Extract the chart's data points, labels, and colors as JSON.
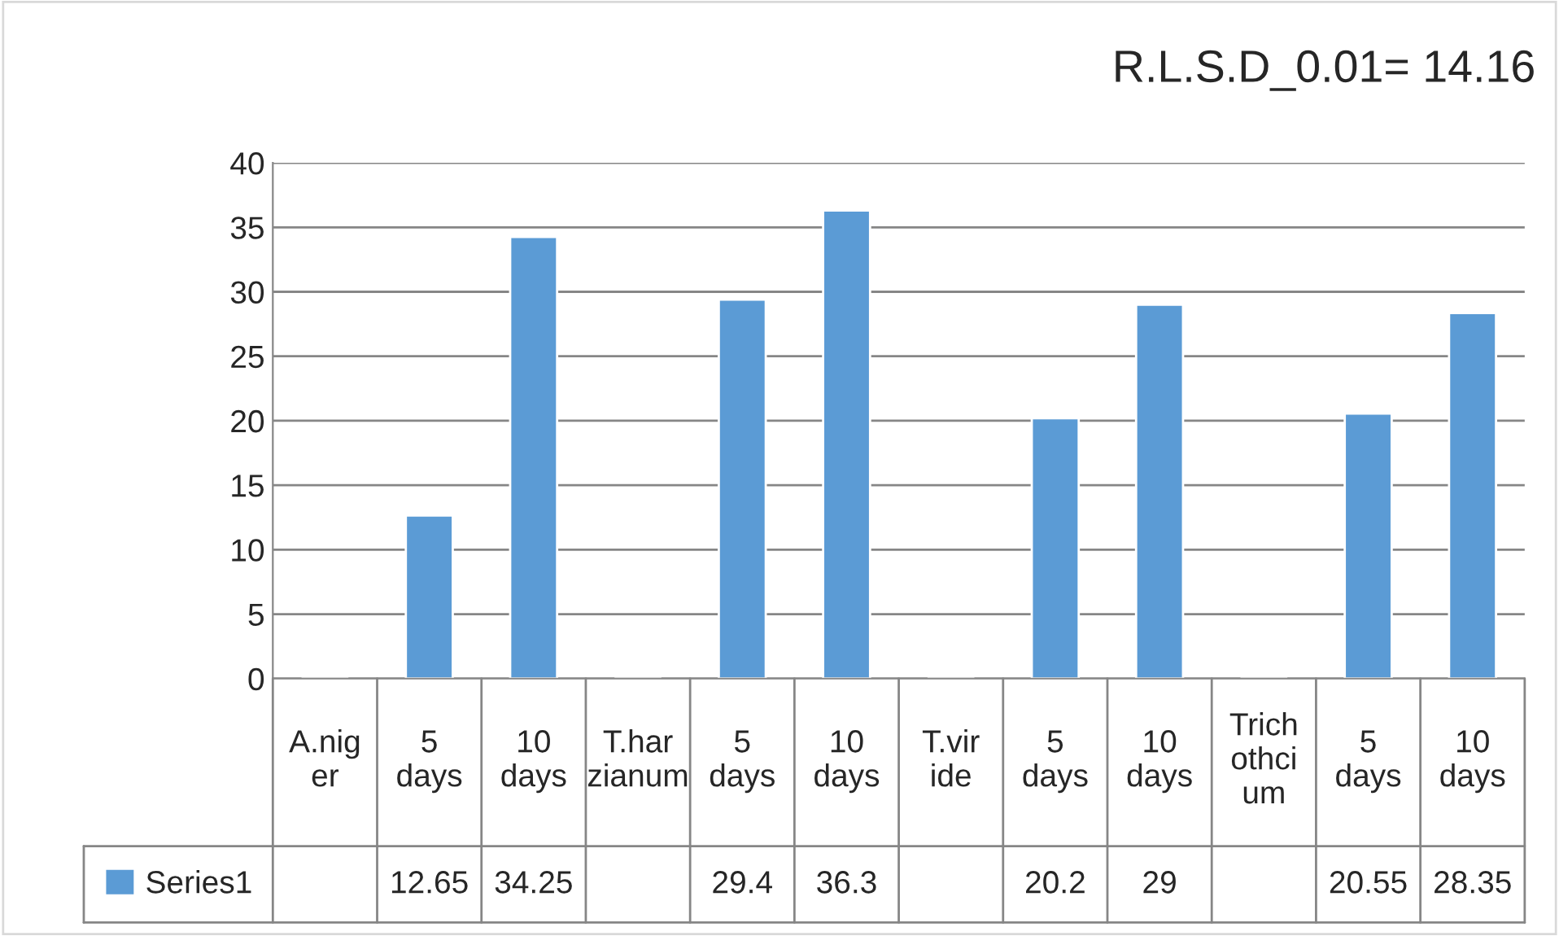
{
  "chart_data": {
    "type": "bar",
    "categories": [
      "A.niger",
      "5 days",
      "10 days",
      "T.harzianum",
      "5 days",
      "10 days",
      "T.viride",
      "5 days",
      "10 days",
      "Trichothcium",
      "5 days",
      "10 days"
    ],
    "series": [
      {
        "name": "Series1",
        "color": "#5b9bd5",
        "values": [
          null,
          12.65,
          34.25,
          null,
          29.4,
          36.3,
          null,
          20.2,
          29,
          null,
          20.55,
          28.35
        ]
      }
    ],
    "ylim": [
      0,
      40
    ],
    "yticks": [
      0,
      5,
      10,
      15,
      20,
      25,
      30,
      35,
      40
    ],
    "grid": "y",
    "legend": "bottom left",
    "data_labels": true,
    "annotations": [
      "R.L.S.D_0.01= 14.16"
    ]
  }
}
